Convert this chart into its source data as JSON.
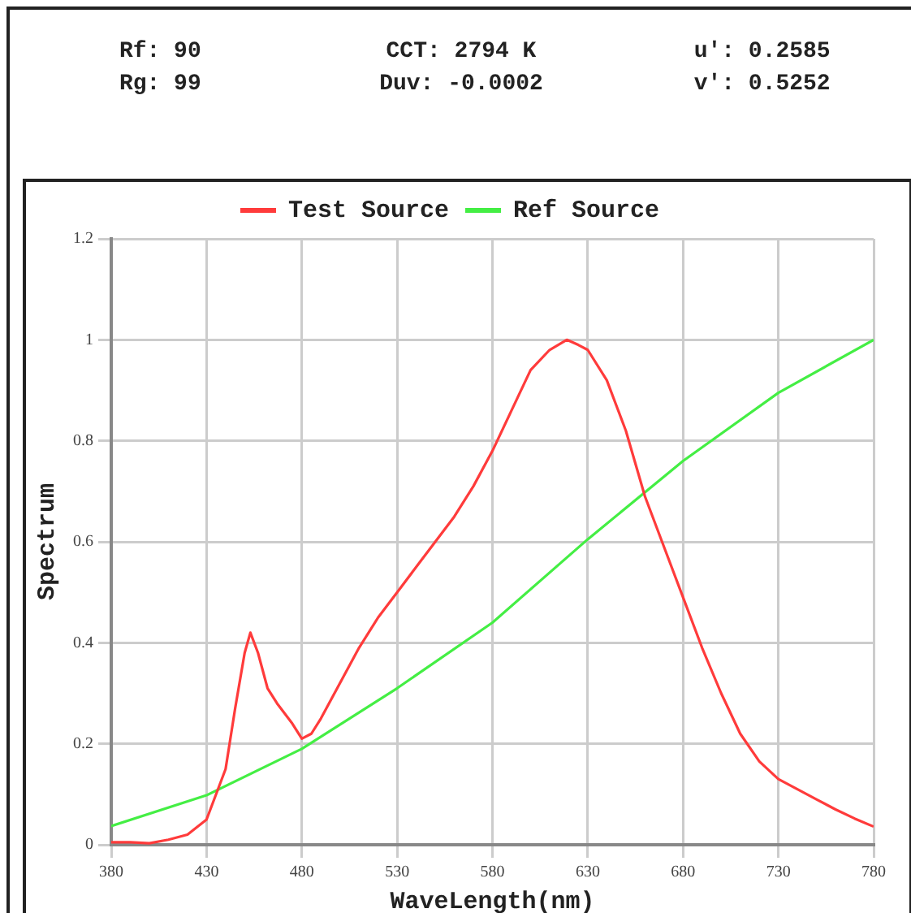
{
  "chart_data": {
    "type": "line",
    "annotations": [
      "Rf: 90",
      "CCT: 2794 K",
      "u': 0.2585",
      "Rg: 99",
      "Duv: -0.0002",
      "v': 0.5252"
    ],
    "xlabel": "WaveLength(nm)",
    "ylabel": "Spectrum",
    "xlim": [
      380,
      780
    ],
    "xticks": [
      380,
      430,
      480,
      530,
      580,
      630,
      680,
      730,
      780
    ],
    "ylim": [
      0,
      1.2
    ],
    "yticks": [
      0,
      0.2,
      0.4,
      0.6,
      0.8,
      1,
      1.2
    ],
    "grid": true,
    "legend": "top",
    "marker": "none",
    "line_style": "solid",
    "series": [
      {
        "name": "Test Source",
        "color": "#ff3b3b",
        "x": [
          380,
          390,
          400,
          410,
          420,
          430,
          440,
          445,
          450,
          453,
          457,
          462,
          467,
          475,
          480,
          485,
          490,
          500,
          510,
          520,
          530,
          540,
          550,
          560,
          570,
          580,
          590,
          600,
          610,
          619,
          625,
          630,
          640,
          650,
          660,
          670,
          680,
          690,
          700,
          710,
          720,
          730,
          740,
          750,
          760,
          770,
          780
        ],
        "values": [
          0.005,
          0.005,
          0.003,
          0.01,
          0.02,
          0.05,
          0.15,
          0.27,
          0.38,
          0.42,
          0.38,
          0.31,
          0.28,
          0.24,
          0.21,
          0.22,
          0.25,
          0.32,
          0.39,
          0.45,
          0.5,
          0.55,
          0.6,
          0.65,
          0.71,
          0.78,
          0.86,
          0.94,
          0.98,
          1.0,
          0.99,
          0.98,
          0.92,
          0.82,
          0.69,
          0.59,
          0.49,
          0.39,
          0.3,
          0.22,
          0.165,
          0.13,
          0.11,
          0.09,
          0.07,
          0.052,
          0.036
        ]
      },
      {
        "name": "Ref Source",
        "color": "#44ee44",
        "x": [
          380,
          430,
          480,
          530,
          580,
          630,
          680,
          730,
          780
        ],
        "values": [
          0.037,
          0.098,
          0.19,
          0.31,
          0.44,
          0.605,
          0.76,
          0.895,
          1.0
        ]
      }
    ]
  }
}
